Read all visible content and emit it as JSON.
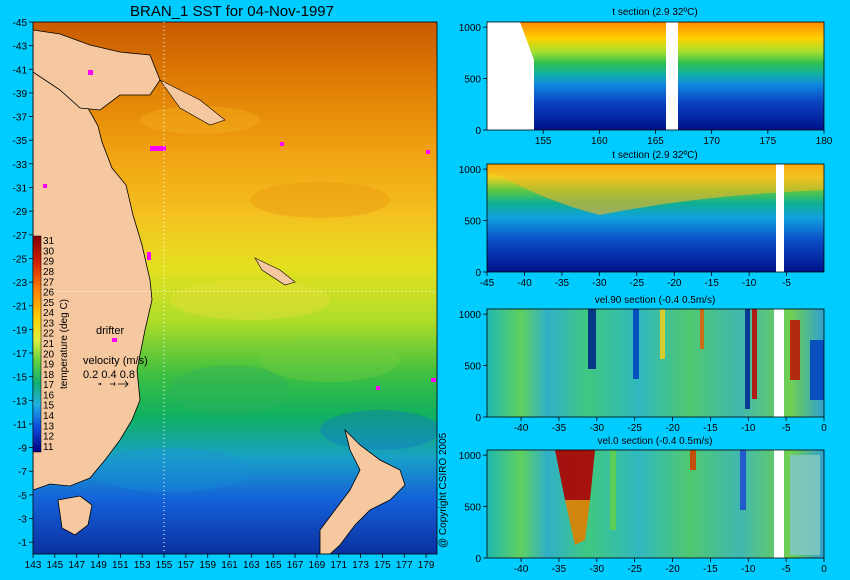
{
  "chart_data": [
    {
      "type": "heatmap",
      "title": "BRAN_1 SST for 04-Nov-1997",
      "x_ticks": [
        "143",
        "145",
        "147",
        "149",
        "151",
        "153",
        "155",
        "157",
        "159",
        "161",
        "163",
        "165",
        "167",
        "169",
        "171",
        "173",
        "175",
        "177",
        "179"
      ],
      "y_ticks": [
        "-1",
        "-3",
        "-5",
        "-7",
        "-9",
        "-11",
        "-13",
        "-15",
        "-17",
        "-19",
        "-21",
        "-23",
        "-25",
        "-27",
        "-29",
        "-31",
        "-33",
        "-35",
        "-37",
        "-39",
        "-41",
        "-43",
        "-45"
      ],
      "xlim": [
        143,
        180
      ],
      "ylim": [
        -45,
        0
      ],
      "section_lines": {
        "lon": 155,
        "lat": -22.2
      },
      "colorbar": {
        "label": "temperature (deg C)",
        "ticks": [
          "31",
          "30",
          "29",
          "28",
          "27",
          "26",
          "25",
          "24",
          "23",
          "22",
          "21",
          "20",
          "19",
          "18",
          "17",
          "16",
          "15",
          "14",
          "13",
          "12",
          "11"
        ]
      },
      "legend": {
        "drifter_label": "drifter",
        "velocity_label": "velocity (m/s)",
        "velocity_scale": "0.2 0.4 0.8"
      },
      "copyright": "@ Copyright CSIRO 2005"
    },
    {
      "type": "heatmap",
      "title": "t section (2.9      32ºC)",
      "x_ticks": [
        "155",
        "160",
        "165",
        "170",
        "175",
        "180"
      ],
      "y_ticks": [
        "0",
        "500",
        "1000"
      ],
      "xlim": [
        150,
        180
      ],
      "ylim": [
        1050,
        0
      ]
    },
    {
      "type": "heatmap",
      "title": "t section (2.9      32ºC)",
      "x_ticks": [
        "-45",
        "-40",
        "-35",
        "-30",
        "-25",
        "-20",
        "-15",
        "-10",
        "-5"
      ],
      "y_ticks": [
        "0",
        "500",
        "1000"
      ],
      "xlim": [
        -45,
        0
      ],
      "ylim": [
        1050,
        0
      ]
    },
    {
      "type": "heatmap",
      "title": "vel.90 section (-0.4      0.5m/s)",
      "x_ticks": [
        "-40",
        "-35",
        "-30",
        "-25",
        "-20",
        "-15",
        "-10",
        "-5",
        "0"
      ],
      "y_ticks": [
        "0",
        "500",
        "1000"
      ],
      "xlim": [
        -44.5,
        0
      ],
      "ylim": [
        1050,
        0
      ]
    },
    {
      "type": "heatmap",
      "title": "vel.0 section (-0.4      0.5m/s)",
      "x_ticks": [
        "-40",
        "-35",
        "-30",
        "-25",
        "-20",
        "-15",
        "-10",
        "-5",
        "0"
      ],
      "y_ticks": [
        "0",
        "500",
        "1000"
      ],
      "xlim": [
        -44.5,
        0
      ],
      "ylim": [
        1050,
        0
      ]
    }
  ]
}
